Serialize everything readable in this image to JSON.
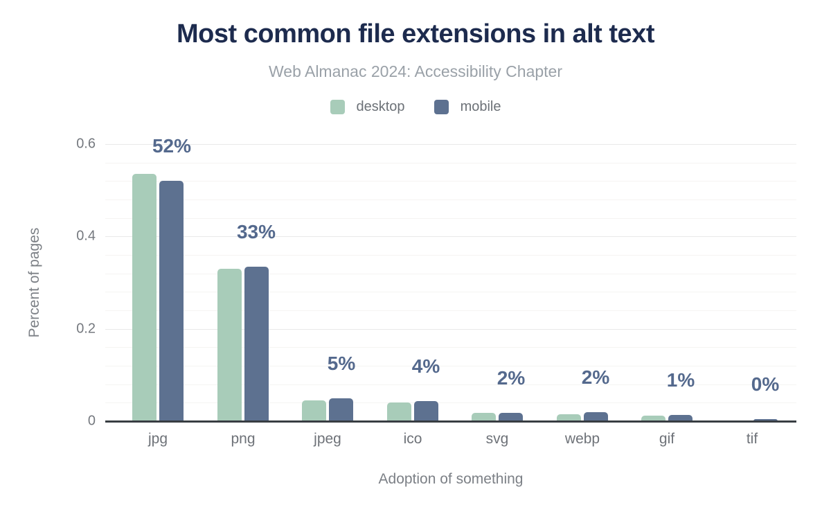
{
  "chart_data": {
    "type": "bar",
    "title": "Most common file extensions in alt text",
    "subtitle": "Web Almanac 2024: Accessibility Chapter",
    "categories": [
      "jpg",
      "png",
      "jpeg",
      "ico",
      "svg",
      "webp",
      "gif",
      "tif"
    ],
    "series": [
      {
        "name": "desktop",
        "color": "#a8ccb9",
        "values": [
          0.535,
          0.33,
          0.045,
          0.04,
          0.018,
          0.015,
          0.012,
          0.001
        ]
      },
      {
        "name": "mobile",
        "color": "#5d7190",
        "values": [
          0.52,
          0.335,
          0.05,
          0.043,
          0.018,
          0.019,
          0.013,
          0.005
        ]
      }
    ],
    "data_labels": [
      "52%",
      "33%",
      "5%",
      "4%",
      "2%",
      "2%",
      "1%",
      "0%"
    ],
    "data_label_series": "mobile",
    "xlabel": "Adoption of something",
    "ylabel": "Percent of pages",
    "yticks": [
      "0",
      "0.2",
      "0.4",
      "0.6"
    ],
    "ytick_values": [
      0,
      0.2,
      0.4,
      0.6
    ],
    "ylim": [
      0,
      0.64
    ],
    "grid": {
      "orientation": "horizontal",
      "minor_step": 0.04,
      "major_step": 0.2
    },
    "legend_position": "top-center",
    "colors": {
      "title": "#1d2b4e",
      "subtitle": "#9aa1a8",
      "legend_text": "#6c7177",
      "axis_line": "#383d42",
      "tick_label": "#75797f",
      "category_label": "#6e7278",
      "axis_title": "#7c8086",
      "data_label": "#54698d",
      "grid_minor": "#f5f4f2",
      "grid_major": "#e9e9e9"
    }
  }
}
